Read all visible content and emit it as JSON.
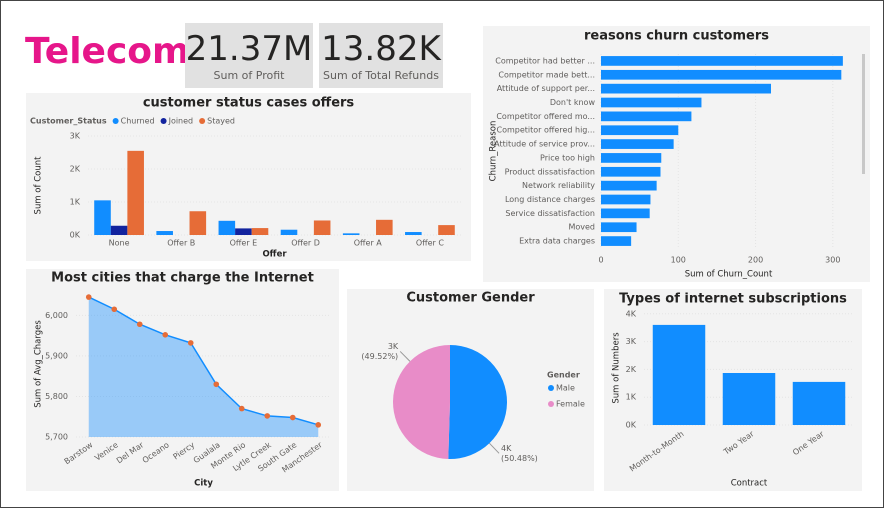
{
  "header": {
    "title": "Telecom"
  },
  "kpis": [
    {
      "value": "21.37M",
      "label": "Sum of Profit"
    },
    {
      "value": "13.82K",
      "label": "Sum of Total Refunds"
    }
  ],
  "chart_data": [
    {
      "type": "bar",
      "title": "customer status cases offers",
      "legend_title": "Customer_Status",
      "categories": [
        "None",
        "Offer B",
        "Offer E",
        "Offer D",
        "Offer A",
        "Offer C"
      ],
      "series": [
        {
          "name": "Churned",
          "color": "#118DFF",
          "values": [
            1050,
            120,
            430,
            160,
            50,
            90
          ]
        },
        {
          "name": "Joined",
          "color": "#12239E",
          "values": [
            280,
            0,
            200,
            0,
            0,
            0
          ]
        },
        {
          "name": "Stayed",
          "color": "#E66C37",
          "values": [
            2550,
            720,
            210,
            440,
            460,
            300
          ]
        }
      ],
      "ylim": [
        0,
        3000
      ],
      "yticks": [
        {
          "value": 0,
          "label": "0K"
        },
        {
          "value": 1000,
          "label": "1K"
        },
        {
          "value": 2000,
          "label": "2K"
        },
        {
          "value": 3000,
          "label": "3K"
        }
      ],
      "ylabel": "Sum of Count",
      "xlabel": "Offer"
    },
    {
      "type": "hbar",
      "title": "reasons churn customers",
      "categories": [
        "Competitor had better ...",
        "Competitor made bett...",
        "Attitude of support per...",
        "Don't know",
        "Competitor offered mo...",
        "Competitor offered hig...",
        "Attitude of service prov...",
        "Price too high",
        "Product dissatisfaction",
        "Network reliability",
        "Long distance charges",
        "Service dissatisfaction",
        "Moved",
        "Extra data charges"
      ],
      "values": [
        313,
        311,
        220,
        130,
        117,
        100,
        94,
        78,
        77,
        72,
        64,
        63,
        46,
        39
      ],
      "color": "#118DFF",
      "xlim": [
        0,
        330
      ],
      "xticks": [
        0,
        100,
        200,
        300
      ],
      "xlabel": "Sum of Churn_Count",
      "ylabel": "Churn_Reason"
    },
    {
      "type": "area",
      "title": "Most cities that charge the Internet",
      "categories": [
        "Barstow",
        "Venice",
        "Del Mar",
        "Oceano",
        "Piercy",
        "Gualala",
        "Monte Rio",
        "Lytle Creek",
        "South Gate",
        "Manchester"
      ],
      "values": [
        6045,
        6015,
        5978,
        5952,
        5932,
        5830,
        5770,
        5752,
        5748,
        5730
      ],
      "color": "#118DFF",
      "marker_color": "#E66C37",
      "ylim": [
        5700,
        6060
      ],
      "yticks": [
        {
          "value": 5700,
          "label": "5,700"
        },
        {
          "value": 5800,
          "label": "5,800"
        },
        {
          "value": 5900,
          "label": "5,900"
        },
        {
          "value": 6000,
          "label": "6,000"
        }
      ],
      "ylabel": "Sum of Avg_Charges",
      "xlabel": "City"
    },
    {
      "type": "pie",
      "title": "Customer Gender",
      "legend_title": "Gender",
      "categories": [
        "Male",
        "Female"
      ],
      "values": [
        50.48,
        49.52
      ],
      "value_labels": [
        "(50.48%)",
        "(49.52%)"
      ],
      "count_labels": [
        "4K",
        "3K"
      ],
      "colors": [
        "#118DFF",
        "#E88CC8"
      ]
    },
    {
      "type": "bar",
      "title": "Types of internet subscriptions",
      "categories": [
        "Month-to-Month",
        "Two Year",
        "One Year"
      ],
      "values": [
        3600,
        1870,
        1550
      ],
      "color": "#118DFF",
      "ylim": [
        0,
        4100
      ],
      "yticks": [
        {
          "value": 0,
          "label": "0K"
        },
        {
          "value": 1000,
          "label": "1K"
        },
        {
          "value": 2000,
          "label": "2K"
        },
        {
          "value": 3000,
          "label": "3K"
        },
        {
          "value": 4000,
          "label": "4K"
        }
      ],
      "ylabel": "Sum of Numbers",
      "xlabel": "Contract",
      "rotate_labels": true
    }
  ]
}
